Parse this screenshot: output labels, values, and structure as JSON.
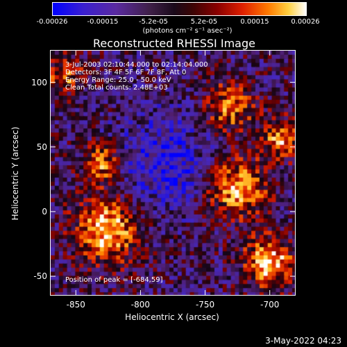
{
  "colorbar": {
    "ticks": [
      "-0.00026",
      "-0.00015",
      "-5.2e-05",
      "5.2e-05",
      "0.00015",
      "0.00026"
    ],
    "units": "(photons cm⁻² s⁻¹ asec⁻²)"
  },
  "chart_data": {
    "type": "heatmap",
    "title": "Reconstructed RHESSI Image",
    "xlabel": "Heliocentric X (arcsec)",
    "ylabel": "Heliocentric Y (arcsec)",
    "xlim": [
      -870,
      -680
    ],
    "ylim": [
      -65,
      125
    ],
    "xticks": [
      "-850",
      "-800",
      "-750",
      "-700"
    ],
    "xtick_values": [
      -850,
      -800,
      -750,
      -700
    ],
    "yticks": [
      "-50",
      "0",
      "50",
      "100"
    ],
    "ytick_values": [
      -50,
      0,
      50,
      100
    ],
    "zlim": [
      -0.00026,
      0.00026
    ],
    "annotations": [
      "3-Jul-2003 02:10:44.000 to 02:14:04.000",
      "Detectors: 3F 4F 5F 6F 7F 8F, Att 0",
      "Energy Range: 25.0 - 50.0 keV",
      "Clean    Total counts: 2.48E+03"
    ],
    "peak_label": "Position of peak = [-684,59]",
    "peak": [
      -684,
      59
    ]
  },
  "footer": "3-May-2022 04:23"
}
